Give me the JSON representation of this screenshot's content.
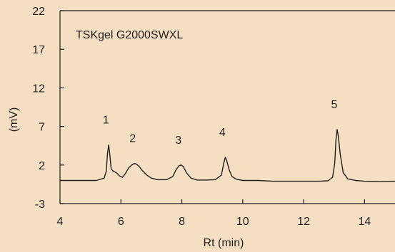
{
  "chart_data": {
    "type": "line",
    "title": "",
    "xlabel": "Rt (min)",
    "ylabel": "(mV)",
    "xlim": [
      4,
      15
    ],
    "ylim": [
      -3,
      22
    ],
    "x_ticks": [
      4,
      6,
      8,
      10,
      12,
      14
    ],
    "x_tick_labels": [
      "4",
      "6",
      "8",
      "10",
      "12",
      "14"
    ],
    "y_ticks": [
      -3,
      2,
      7,
      12,
      17,
      22
    ],
    "y_tick_labels": [
      "-3",
      "2",
      "7",
      "12",
      "17",
      "22"
    ],
    "grid": false,
    "annotation": "TSKgel G2000SWXL",
    "colors": {
      "background": "#f5dfc2",
      "line": "#231f20",
      "axis": "#231f20"
    },
    "peaks": [
      {
        "label": "1",
        "rt": 5.6,
        "height": 4.6
      },
      {
        "label": "2",
        "rt": 6.48,
        "height": 2.2
      },
      {
        "label": "3",
        "rt": 7.98,
        "height": 2.0
      },
      {
        "label": "4",
        "rt": 9.43,
        "height": 3.0
      },
      {
        "label": "5",
        "rt": 13.1,
        "height": 6.6
      }
    ],
    "series": [
      {
        "x": [
          4.0,
          5.2,
          5.45,
          5.52,
          5.56,
          5.6,
          5.64,
          5.68,
          5.75,
          5.85,
          5.95,
          6.05,
          6.15,
          6.25,
          6.35,
          6.45,
          6.52,
          6.6,
          6.7,
          6.85,
          7.0,
          7.2,
          7.5,
          7.7,
          7.8,
          7.9,
          7.98,
          8.05,
          8.15,
          8.3,
          8.5,
          8.8,
          9.1,
          9.3,
          9.38,
          9.43,
          9.48,
          9.56,
          9.65,
          9.8,
          10.0,
          10.5,
          11.0,
          11.5,
          12.0,
          12.5,
          12.8,
          12.95,
          13.02,
          13.06,
          13.1,
          13.14,
          13.2,
          13.3,
          13.45,
          13.7,
          14.0,
          14.5,
          15.0
        ],
        "y": [
          0.0,
          0.0,
          0.3,
          1.2,
          3.5,
          4.6,
          3.2,
          1.5,
          1.2,
          1.0,
          0.6,
          0.4,
          0.9,
          1.6,
          2.0,
          2.2,
          2.1,
          1.8,
          1.3,
          0.7,
          0.3,
          0.1,
          0.1,
          0.5,
          1.3,
          1.9,
          2.0,
          1.8,
          1.0,
          0.3,
          0.05,
          0.05,
          0.1,
          0.7,
          2.3,
          3.0,
          2.5,
          1.3,
          0.5,
          0.15,
          0.0,
          0.0,
          -0.1,
          -0.1,
          -0.1,
          -0.1,
          -0.05,
          0.4,
          2.2,
          5.2,
          6.6,
          5.7,
          3.4,
          1.0,
          0.2,
          0.0,
          -0.1,
          -0.15,
          -0.1
        ]
      }
    ]
  }
}
